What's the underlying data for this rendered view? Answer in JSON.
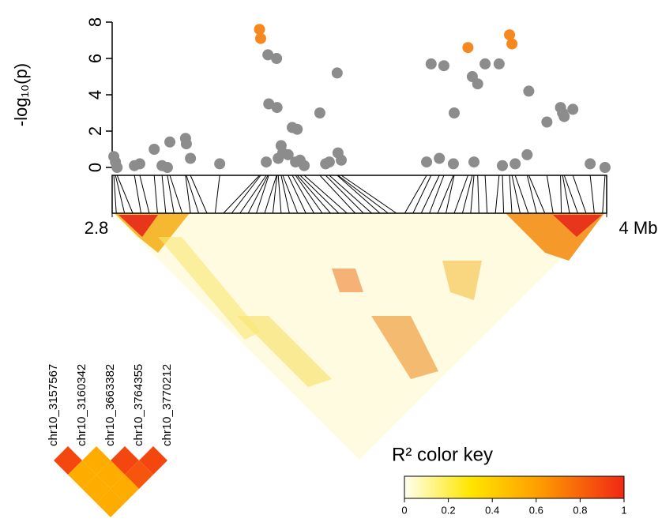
{
  "chart_data": {
    "type": "scatter",
    "y_label": "-log₁₀(p)",
    "xlim": [
      2.8,
      4
    ],
    "xticks": [
      2.8,
      {
        "value": 4,
        "label": "4 Mb"
      }
    ],
    "ylim": [
      0,
      8
    ],
    "yticks": [
      0,
      2,
      4,
      6,
      8
    ],
    "series": [
      {
        "color": "#8c8c8c",
        "x": [
          2.804,
          2.808,
          2.812,
          2.854,
          2.867,
          2.902,
          2.921,
          2.934,
          2.94,
          2.978,
          2.98,
          2.99,
          3.061,
          3.174,
          3.178,
          3.18,
          3.199,
          3.2,
          3.203,
          3.21,
          3.214,
          3.227,
          3.237,
          3.245,
          3.249,
          3.256,
          3.266,
          3.304,
          3.318,
          3.327,
          3.346,
          3.348,
          3.356,
          3.563,
          3.574,
          3.594,
          3.605,
          3.628,
          3.63,
          3.674,
          3.678,
          3.687,
          3.705,
          3.739,
          3.747,
          3.778,
          3.807,
          3.811,
          3.855,
          3.888,
          3.893,
          3.897,
          3.918,
          3.96,
          3.996
        ],
        "values": [
          0.6,
          0.3,
          0.0,
          0.1,
          0.2,
          1.0,
          0.1,
          0.0,
          1.4,
          1.6,
          1.3,
          0.5,
          0.2,
          0.3,
          6.2,
          3.5,
          6.0,
          3.3,
          0.5,
          1.2,
          0.8,
          0.7,
          2.2,
          0.3,
          2.1,
          0.4,
          0.1,
          3.0,
          0.2,
          0.3,
          5.2,
          0.8,
          0.4,
          0.3,
          5.7,
          0.5,
          5.6,
          0.2,
          3.0,
          5.0,
          0.3,
          4.6,
          5.7,
          5.7,
          0.1,
          0.2,
          0.7,
          4.2,
          2.5,
          3.3,
          3.0,
          2.8,
          3.2,
          0.2,
          0.0
        ]
      },
      {
        "color": "#f5891f",
        "x": [
          3.157567,
          3.160342,
          3.663382,
          3.764355,
          3.770212
        ],
        "values": [
          7.6,
          7.1,
          6.6,
          7.3,
          6.8
        ]
      }
    ],
    "snp_labels": [
      "chr10_3157567",
      "chr10_3160342",
      "chr10_3663382",
      "chr10_3764355",
      "chr10_3770212"
    ],
    "ld_pairs": [
      [
        0.9,
        0.55,
        0.9,
        0.9
      ],
      [
        0.55,
        0.55,
        0.85
      ],
      [
        0.55,
        0.55
      ],
      [
        0.55
      ]
    ],
    "color_key": {
      "title": "R² color key",
      "clim": [
        0,
        1
      ],
      "ticks": [
        0,
        0.2,
        0.4,
        0.6,
        0.8,
        1
      ]
    }
  }
}
